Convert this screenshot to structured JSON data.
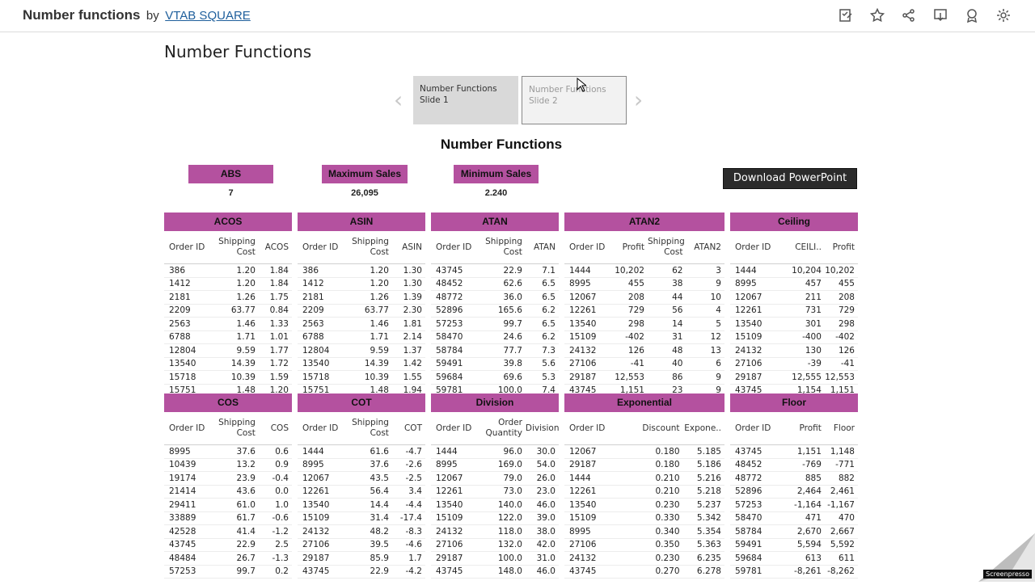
{
  "header": {
    "workbook_title": "Number functions",
    "by": "by",
    "author": "VTAB SQUARE",
    "icons": [
      "annotate-icon",
      "star-icon",
      "share-icon",
      "download-icon",
      "subscribe-icon",
      "settings-icon"
    ]
  },
  "page_title": "Number Functions",
  "slides": [
    {
      "label": "Number Functions Slide 1"
    },
    {
      "label": "Number Functions Slide 2"
    }
  ],
  "dashboard_title": "Number Functions",
  "kpis": [
    {
      "label": "ABS",
      "value": "7"
    },
    {
      "label": "Maximum Sales",
      "value": "26,095"
    },
    {
      "label": "Minimum Sales",
      "value": "2.240"
    }
  ],
  "download_button": "Download PowerPoint",
  "colors": {
    "accent": "#b4519f",
    "button_bg": "#2b2b2b"
  },
  "panels_top": [
    {
      "title": "ACOS",
      "columns": [
        "Order ID",
        "Shipping Cost",
        "ACOS"
      ],
      "rows": [
        [
          "386",
          "1.20",
          "1.84"
        ],
        [
          "1412",
          "1.20",
          "1.84"
        ],
        [
          "2181",
          "1.26",
          "1.75"
        ],
        [
          "2209",
          "63.77",
          "0.84"
        ],
        [
          "2563",
          "1.46",
          "1.33"
        ],
        [
          "6788",
          "1.71",
          "1.01"
        ],
        [
          "12804",
          "9.59",
          "1.77"
        ],
        [
          "13540",
          "14.39",
          "1.72"
        ],
        [
          "15718",
          "10.39",
          "1.59"
        ],
        [
          "15751",
          "1.48",
          "1.20"
        ]
      ]
    },
    {
      "title": "ASIN",
      "columns": [
        "Order ID",
        "Shipping Cost",
        "ASIN"
      ],
      "rows": [
        [
          "386",
          "1.20",
          "1.30"
        ],
        [
          "1412",
          "1.20",
          "1.30"
        ],
        [
          "2181",
          "1.26",
          "1.39"
        ],
        [
          "2209",
          "63.77",
          "2.30"
        ],
        [
          "2563",
          "1.46",
          "1.81"
        ],
        [
          "6788",
          "1.71",
          "2.14"
        ],
        [
          "12804",
          "9.59",
          "1.37"
        ],
        [
          "13540",
          "14.39",
          "1.42"
        ],
        [
          "15718",
          "10.39",
          "1.55"
        ],
        [
          "15751",
          "1.48",
          "1.94"
        ]
      ]
    },
    {
      "title": "ATAN",
      "columns": [
        "Order ID",
        "Shipping Cost",
        "ATAN"
      ],
      "rows": [
        [
          "43745",
          "22.9",
          "7.1"
        ],
        [
          "48452",
          "62.6",
          "6.5"
        ],
        [
          "48772",
          "36.0",
          "6.5"
        ],
        [
          "52896",
          "165.6",
          "6.2"
        ],
        [
          "57253",
          "99.7",
          "6.5"
        ],
        [
          "58470",
          "24.6",
          "6.2"
        ],
        [
          "58784",
          "77.7",
          "7.3"
        ],
        [
          "59491",
          "39.8",
          "5.6"
        ],
        [
          "59684",
          "69.6",
          "5.3"
        ],
        [
          "59781",
          "100.0",
          "7.4"
        ]
      ]
    },
    {
      "title": "ATAN2",
      "columns": [
        "Order ID",
        "Profit",
        "Shipping Cost",
        "ATAN2"
      ],
      "rows": [
        [
          "1444",
          "10,202",
          "62",
          "3"
        ],
        [
          "8995",
          "455",
          "38",
          "9"
        ],
        [
          "12067",
          "208",
          "44",
          "10"
        ],
        [
          "12261",
          "729",
          "56",
          "4"
        ],
        [
          "13540",
          "298",
          "14",
          "5"
        ],
        [
          "15109",
          "-402",
          "31",
          "12"
        ],
        [
          "24132",
          "126",
          "48",
          "13"
        ],
        [
          "27106",
          "-41",
          "40",
          "6"
        ],
        [
          "29187",
          "12,553",
          "86",
          "9"
        ],
        [
          "43745",
          "1,151",
          "23",
          "9"
        ]
      ]
    },
    {
      "title": "Ceiling",
      "columns": [
        "Order ID",
        "CEILI..",
        "Profit"
      ],
      "rows": [
        [
          "1444",
          "10,204",
          "10,202"
        ],
        [
          "8995",
          "457",
          "455"
        ],
        [
          "12067",
          "211",
          "208"
        ],
        [
          "12261",
          "731",
          "729"
        ],
        [
          "13540",
          "301",
          "298"
        ],
        [
          "15109",
          "-400",
          "-402"
        ],
        [
          "24132",
          "130",
          "126"
        ],
        [
          "27106",
          "-39",
          "-41"
        ],
        [
          "29187",
          "12,555",
          "12,553"
        ],
        [
          "43745",
          "1,154",
          "1,151"
        ]
      ]
    }
  ],
  "panels_bottom": [
    {
      "title": "COS",
      "columns": [
        "Order ID",
        "Shipping Cost",
        "COS"
      ],
      "rows": [
        [
          "8995",
          "37.6",
          "0.6"
        ],
        [
          "10439",
          "13.2",
          "0.9"
        ],
        [
          "19174",
          "23.9",
          "-0.4"
        ],
        [
          "21414",
          "43.6",
          "0.0"
        ],
        [
          "29411",
          "61.0",
          "1.0"
        ],
        [
          "33889",
          "61.7",
          "-0.6"
        ],
        [
          "42528",
          "41.4",
          "-1.2"
        ],
        [
          "43745",
          "22.9",
          "2.5"
        ],
        [
          "48484",
          "26.7",
          "-1.3"
        ],
        [
          "57253",
          "99.7",
          "0.2"
        ]
      ]
    },
    {
      "title": "COT",
      "columns": [
        "Order ID",
        "Shipping Cost",
        "COT"
      ],
      "rows": [
        [
          "1444",
          "61.6",
          "-4.7"
        ],
        [
          "8995",
          "37.6",
          "-2.6"
        ],
        [
          "12067",
          "43.5",
          "-2.5"
        ],
        [
          "12261",
          "56.4",
          "3.4"
        ],
        [
          "13540",
          "14.4",
          "-4.4"
        ],
        [
          "15109",
          "31.4",
          "-17.4"
        ],
        [
          "24132",
          "48.2",
          "-8.3"
        ],
        [
          "27106",
          "39.5",
          "-4.6"
        ],
        [
          "29187",
          "85.9",
          "1.7"
        ],
        [
          "43745",
          "22.9",
          "-4.2"
        ]
      ]
    },
    {
      "title": "Division",
      "columns": [
        "Order ID",
        "Order Quantity",
        "Division"
      ],
      "rows": [
        [
          "1444",
          "96.0",
          "30.0"
        ],
        [
          "8995",
          "169.0",
          "54.0"
        ],
        [
          "12067",
          "79.0",
          "26.0"
        ],
        [
          "12261",
          "73.0",
          "23.0"
        ],
        [
          "13540",
          "140.0",
          "46.0"
        ],
        [
          "15109",
          "122.0",
          "39.0"
        ],
        [
          "24132",
          "118.0",
          "38.0"
        ],
        [
          "27106",
          "132.0",
          "42.0"
        ],
        [
          "29187",
          "100.0",
          "31.0"
        ],
        [
          "43745",
          "148.0",
          "46.0"
        ]
      ]
    },
    {
      "title": "Exponential",
      "columns": [
        "Order ID",
        "Discount",
        "Expone.."
      ],
      "rows": [
        [
          "12067",
          "0.180",
          "5.185"
        ],
        [
          "29187",
          "0.180",
          "5.186"
        ],
        [
          "1444",
          "0.210",
          "5.216"
        ],
        [
          "12261",
          "0.210",
          "5.218"
        ],
        [
          "13540",
          "0.230",
          "5.237"
        ],
        [
          "15109",
          "0.330",
          "5.342"
        ],
        [
          "8995",
          "0.340",
          "5.354"
        ],
        [
          "27106",
          "0.350",
          "5.363"
        ],
        [
          "24132",
          "0.230",
          "6.235"
        ],
        [
          "43745",
          "0.270",
          "6.278"
        ]
      ]
    },
    {
      "title": "Floor",
      "columns": [
        "Order ID",
        "Profit",
        "Floor"
      ],
      "rows": [
        [
          "43745",
          "1,151",
          "1,148"
        ],
        [
          "48452",
          "-769",
          "-771"
        ],
        [
          "48772",
          "885",
          "882"
        ],
        [
          "52896",
          "2,464",
          "2,461"
        ],
        [
          "57253",
          "-1,164",
          "-1,167"
        ],
        [
          "58470",
          "471",
          "470"
        ],
        [
          "58784",
          "2,670",
          "2,667"
        ],
        [
          "59491",
          "5,594",
          "5,592"
        ],
        [
          "59684",
          "613",
          "611"
        ],
        [
          "59781",
          "-8,261",
          "-8,262"
        ]
      ]
    }
  ],
  "watermark": "Screenpresso"
}
